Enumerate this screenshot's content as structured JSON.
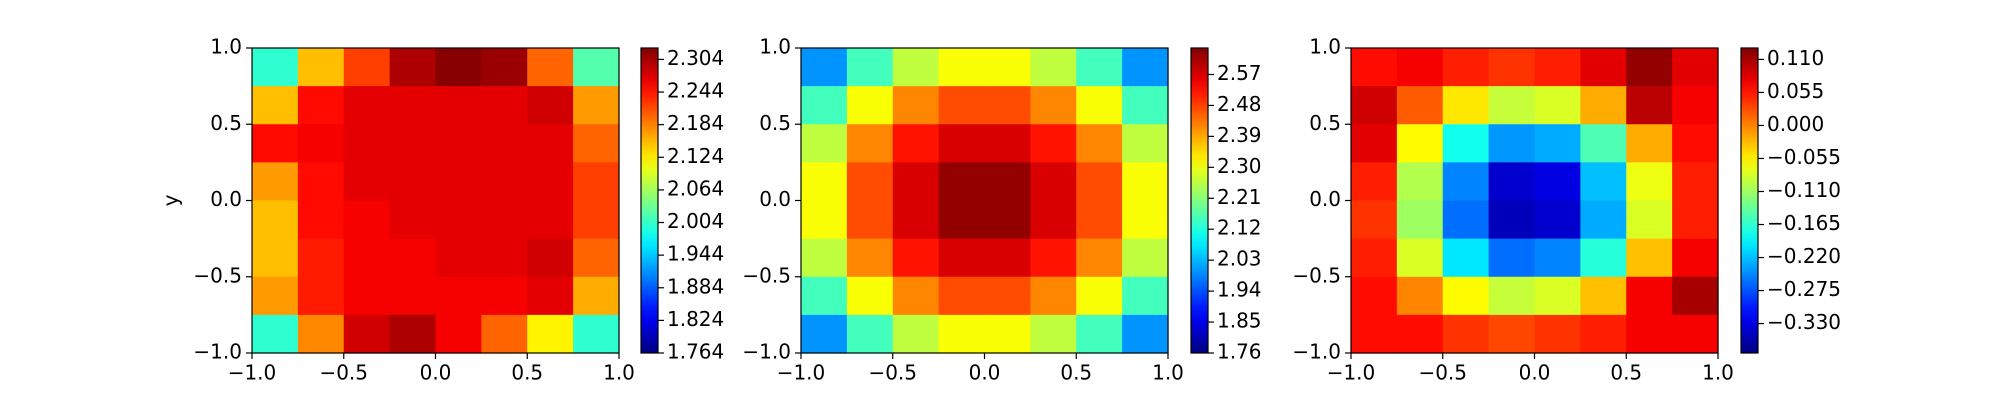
{
  "chart_data": [
    {
      "type": "heatmap",
      "colormap": "jet",
      "ylabel": "y",
      "x": [
        -0.875,
        -0.625,
        -0.375,
        -0.125,
        0.125,
        0.375,
        0.625,
        0.875
      ],
      "y": [
        0.875,
        0.625,
        0.375,
        0.125,
        -0.125,
        -0.375,
        -0.625,
        -0.875
      ],
      "z": [
        [
          2.0,
          2.15,
          2.22,
          2.3,
          2.32,
          2.31,
          2.2,
          2.02
        ],
        [
          2.15,
          2.25,
          2.27,
          2.27,
          2.27,
          2.27,
          2.28,
          2.17
        ],
        [
          2.25,
          2.26,
          2.27,
          2.27,
          2.27,
          2.27,
          2.27,
          2.2
        ],
        [
          2.17,
          2.25,
          2.27,
          2.27,
          2.27,
          2.27,
          2.27,
          2.22
        ],
        [
          2.15,
          2.25,
          2.26,
          2.27,
          2.27,
          2.27,
          2.27,
          2.22
        ],
        [
          2.15,
          2.24,
          2.26,
          2.26,
          2.27,
          2.27,
          2.28,
          2.2
        ],
        [
          2.17,
          2.24,
          2.26,
          2.26,
          2.26,
          2.26,
          2.27,
          2.16
        ],
        [
          2.0,
          2.18,
          2.28,
          2.3,
          2.26,
          2.2,
          2.12,
          2.0
        ]
      ],
      "xlim": [
        -1,
        1
      ],
      "ylim": [
        -1,
        1
      ],
      "xticks": [
        {
          "value": -1,
          "label": "−1.0"
        },
        {
          "value": -0.5,
          "label": "−0.5"
        },
        {
          "value": 0,
          "label": "0.0"
        },
        {
          "value": 0.5,
          "label": "0.5"
        },
        {
          "value": 1,
          "label": "1.0"
        }
      ],
      "yticks": [
        {
          "value": -1,
          "label": "−1.0"
        },
        {
          "value": -0.5,
          "label": "−0.5"
        },
        {
          "value": 0,
          "label": "0.0"
        },
        {
          "value": 0.5,
          "label": "0.5"
        },
        {
          "value": 1,
          "label": "1.0"
        }
      ],
      "clim": [
        1.764,
        2.325
      ],
      "cticks": [
        1.764,
        1.824,
        1.884,
        1.944,
        2.004,
        2.064,
        2.124,
        2.184,
        2.244,
        2.304
      ]
    },
    {
      "type": "heatmap",
      "colormap": "jet",
      "x": [
        -0.875,
        -0.625,
        -0.375,
        -0.125,
        0.125,
        0.375,
        0.625,
        0.875
      ],
      "y": [
        0.875,
        0.625,
        0.375,
        0.125,
        -0.125,
        -0.375,
        -0.625,
        -0.875
      ],
      "z": [
        [
          2.0,
          2.15,
          2.26,
          2.31,
          2.31,
          2.26,
          2.15,
          2.0
        ],
        [
          2.15,
          2.31,
          2.42,
          2.47,
          2.47,
          2.42,
          2.31,
          2.15
        ],
        [
          2.26,
          2.42,
          2.52,
          2.57,
          2.57,
          2.52,
          2.42,
          2.26
        ],
        [
          2.31,
          2.47,
          2.57,
          2.63,
          2.63,
          2.57,
          2.47,
          2.31
        ],
        [
          2.31,
          2.47,
          2.57,
          2.63,
          2.63,
          2.57,
          2.47,
          2.31
        ],
        [
          2.26,
          2.42,
          2.52,
          2.57,
          2.57,
          2.52,
          2.42,
          2.26
        ],
        [
          2.15,
          2.31,
          2.42,
          2.47,
          2.47,
          2.42,
          2.31,
          2.15
        ],
        [
          2.0,
          2.15,
          2.26,
          2.31,
          2.31,
          2.26,
          2.15,
          2.0
        ]
      ],
      "xlim": [
        -1,
        1
      ],
      "ylim": [
        -1,
        1
      ],
      "xticks": [
        {
          "value": -1,
          "label": "−1.0"
        },
        {
          "value": -0.5,
          "label": "−0.5"
        },
        {
          "value": 0,
          "label": "0.0"
        },
        {
          "value": 0.5,
          "label": "0.5"
        },
        {
          "value": 1,
          "label": "1.0"
        }
      ],
      "yticks": [
        {
          "value": -1,
          "label": "−1.0"
        },
        {
          "value": -0.5,
          "label": "−0.5"
        },
        {
          "value": 0,
          "label": "0.0"
        },
        {
          "value": 0.5,
          "label": "0.5"
        },
        {
          "value": 1,
          "label": "1.0"
        }
      ],
      "clim": [
        1.76,
        2.647
      ],
      "cticks": [
        1.76,
        1.85,
        1.94,
        2.03,
        2.12,
        2.21,
        {
          "value": 2.3,
          "label": "2.30"
        },
        2.39,
        2.48,
        2.57
      ]
    },
    {
      "type": "heatmap",
      "colormap": "jet",
      "x": [
        -0.875,
        -0.625,
        -0.375,
        -0.125,
        0.125,
        0.375,
        0.625,
        0.875
      ],
      "y": [
        0.875,
        0.625,
        0.375,
        0.125,
        -0.125,
        -0.375,
        -0.625,
        -0.875
      ],
      "z": [
        [
          0.06,
          0.07,
          0.05,
          0.04,
          0.05,
          0.08,
          0.12,
          0.08
        ],
        [
          0.09,
          0.02,
          -0.05,
          -0.09,
          -0.08,
          -0.02,
          0.1,
          0.07
        ],
        [
          0.08,
          -0.06,
          -0.18,
          -0.24,
          -0.23,
          -0.15,
          -0.02,
          0.06
        ],
        [
          0.05,
          -0.1,
          -0.25,
          -0.34,
          -0.33,
          -0.22,
          -0.07,
          0.05
        ],
        [
          0.04,
          -0.11,
          -0.26,
          -0.35,
          -0.34,
          -0.23,
          -0.08,
          0.05
        ],
        [
          0.05,
          -0.08,
          -0.2,
          -0.26,
          -0.25,
          -0.17,
          -0.03,
          0.07
        ],
        [
          0.06,
          0.0,
          -0.06,
          -0.09,
          -0.08,
          -0.03,
          0.07,
          0.11
        ],
        [
          0.06,
          0.06,
          0.04,
          0.03,
          0.04,
          0.05,
          0.07,
          0.07
        ]
      ],
      "xlim": [
        -1,
        1
      ],
      "ylim": [
        -1,
        1
      ],
      "xticks": [
        {
          "value": -1,
          "label": "−1.0"
        },
        {
          "value": -0.5,
          "label": "−0.5"
        },
        {
          "value": 0,
          "label": "0.0"
        },
        {
          "value": 0.5,
          "label": "0.5"
        },
        {
          "value": 1,
          "label": "1.0"
        }
      ],
      "yticks": [
        {
          "value": -1,
          "label": "−1.0"
        },
        {
          "value": -0.5,
          "label": "−0.5"
        },
        {
          "value": 0,
          "label": "0.0"
        },
        {
          "value": 0.5,
          "label": "0.5"
        },
        {
          "value": 1,
          "label": "1.0"
        }
      ],
      "clim": [
        -0.379,
        0.129
      ],
      "cticks": [
        {
          "value": -0.33,
          "label": "−0.330"
        },
        {
          "value": -0.275,
          "label": "−0.275"
        },
        {
          "value": -0.22,
          "label": "−0.220"
        },
        {
          "value": -0.165,
          "label": "−0.165"
        },
        {
          "value": -0.11,
          "label": "−0.110"
        },
        {
          "value": -0.055,
          "label": "−0.055"
        },
        {
          "value": 0,
          "label": "0.000"
        },
        {
          "value": 0.055,
          "label": "0.055"
        },
        {
          "value": 0.11,
          "label": "0.110"
        }
      ]
    }
  ]
}
